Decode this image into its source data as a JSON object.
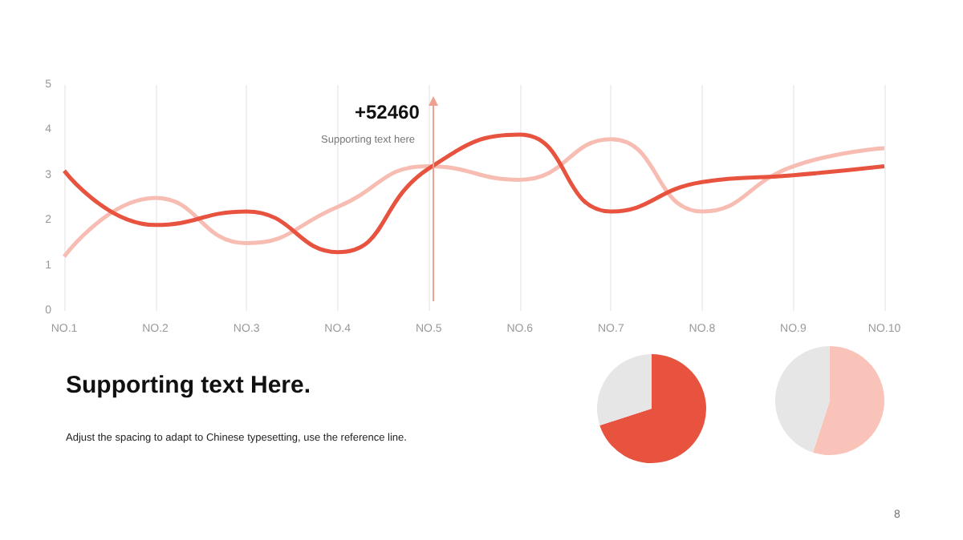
{
  "chart_data": [
    {
      "type": "line",
      "categories": [
        "NO.1",
        "NO.2",
        "NO.3",
        "NO.4",
        "NO.5",
        "NO.6",
        "NO.7",
        "NO.8",
        "NO.9",
        "NO.10"
      ],
      "series": [
        {
          "color": "#f7bdb3",
          "values": [
            1.2,
            2.5,
            1.5,
            2.3,
            3.2,
            2.9,
            3.8,
            2.2,
            3.2,
            3.6
          ]
        },
        {
          "color": "#e8533f",
          "values": [
            3.1,
            1.9,
            2.2,
            1.3,
            3.15,
            3.9,
            2.2,
            2.85,
            3.0,
            3.2
          ]
        }
      ],
      "ylim": [
        0,
        5
      ],
      "yticks": [
        0,
        1,
        2,
        3,
        4,
        5
      ],
      "grid": "x",
      "marker": "none",
      "line_style": "solid",
      "annotations": [
        "+52460",
        "Supporting text here",
        "Supporting text Here.",
        "Adjust the spacing to adapt to Chinese typesetting, use the reference line.",
        "8"
      ]
    },
    {
      "type": "pie",
      "categories": [
        null,
        null
      ],
      "values": [
        70,
        30
      ],
      "colors": [
        "#e8533f",
        "#e6e6e6"
      ]
    },
    {
      "type": "pie",
      "categories": [
        null,
        null
      ],
      "values": [
        55,
        45
      ],
      "colors": [
        "#f9c3b9",
        "#e6e6e6"
      ]
    }
  ]
}
